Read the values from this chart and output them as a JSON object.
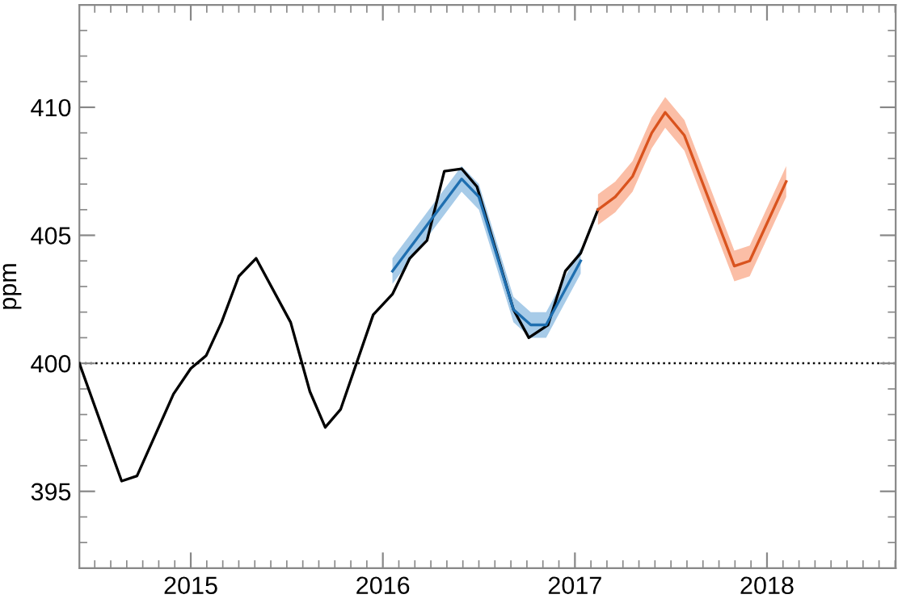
{
  "chart_data": {
    "type": "line",
    "ylabel": "ppm",
    "xlim": [
      2014.42,
      2018.67
    ],
    "xticks": [
      2015,
      2016,
      2017,
      2018
    ],
    "ylim": [
      392,
      414
    ],
    "yticks": [
      395,
      400,
      405,
      410
    ],
    "grid": false,
    "legend": false,
    "line_style": "solid",
    "marker": "none",
    "ref_lines": [
      {
        "axis": "y",
        "value": 400,
        "label": null,
        "color": "#000000",
        "line_style": "dotted"
      }
    ],
    "series": [
      {
        "color": "#000000",
        "x": [
          2014.42,
          2014.64,
          2014.72,
          2014.91,
          2015.0,
          2015.08,
          2015.16,
          2015.25,
          2015.34,
          2015.52,
          2015.62,
          2015.7,
          2015.78,
          2015.95,
          2016.05,
          2016.14,
          2016.23,
          2016.32,
          2016.41,
          2016.49,
          2016.68,
          2016.76,
          2016.86,
          2016.95,
          2017.03,
          2017.12
        ],
        "values": [
          400.0,
          395.4,
          395.6,
          398.8,
          399.8,
          400.3,
          401.6,
          403.4,
          404.1,
          401.6,
          398.9,
          397.5,
          398.2,
          401.9,
          402.7,
          404.1,
          404.8,
          407.5,
          407.6,
          406.9,
          402.1,
          401.0,
          401.5,
          403.6,
          404.3,
          406.0
        ]
      },
      {
        "color": "#1f6fb0",
        "x": [
          2016.05,
          2016.22,
          2016.41,
          2016.5,
          2016.68,
          2016.77,
          2016.85,
          2017.03
        ],
        "values": [
          403.6,
          405.3,
          407.2,
          406.5,
          402.1,
          401.5,
          401.5,
          404.0
        ],
        "lower": [
          403.1,
          404.8,
          406.7,
          406.0,
          401.6,
          401.0,
          401.0,
          403.5
        ],
        "upper": [
          404.1,
          405.8,
          407.7,
          407.0,
          402.6,
          402.0,
          402.0,
          404.5
        ]
      },
      {
        "color": "#d9531e",
        "x": [
          2017.12,
          2017.21,
          2017.3,
          2017.4,
          2017.47,
          2017.57,
          2017.83,
          2017.91,
          2018.1
        ],
        "values": [
          406.0,
          406.5,
          407.3,
          409.0,
          409.8,
          408.9,
          403.8,
          404.0,
          407.1
        ],
        "lower": [
          405.4,
          405.9,
          406.7,
          408.4,
          409.2,
          408.3,
          403.2,
          403.4,
          406.5
        ],
        "upper": [
          406.6,
          407.1,
          407.9,
          409.6,
          410.4,
          409.5,
          404.4,
          404.6,
          407.7
        ]
      }
    ]
  }
}
